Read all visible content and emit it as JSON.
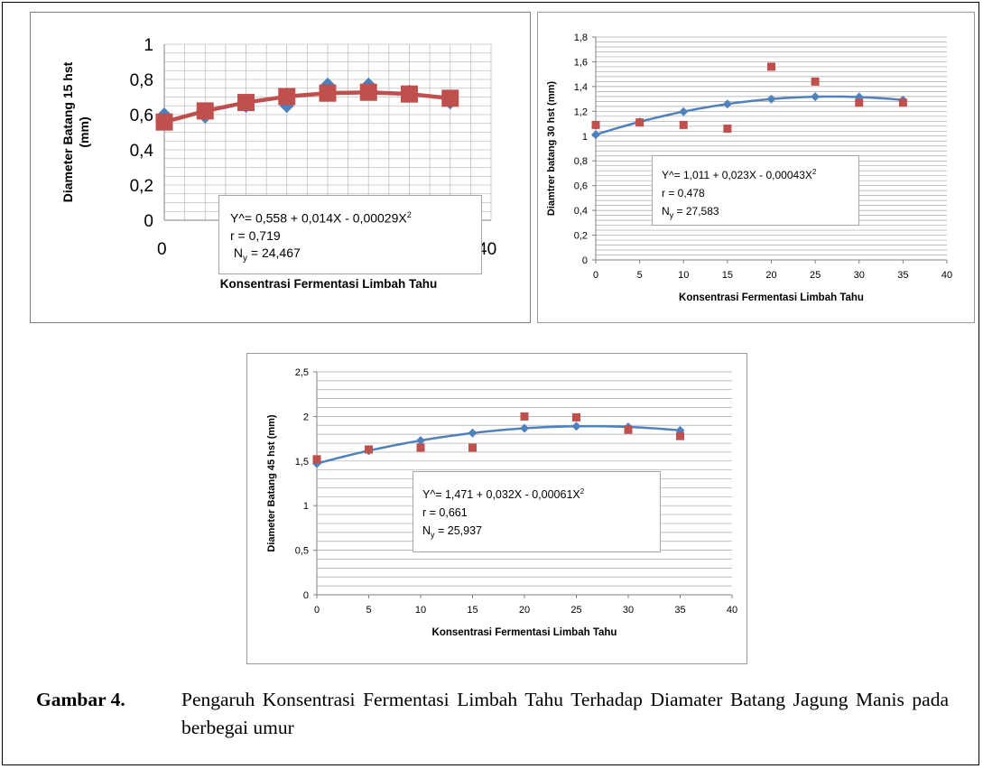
{
  "figure": {
    "caption_label": "Gambar 4.",
    "caption_text": "Pengaruh  Konsentrasi Fermentasi  Limbah Tahu Terhadap Diamater Batang Jagung Manis pada berbegai umur"
  },
  "chart_data": [
    {
      "type": "line",
      "ylabel_line1": "Diameter Batang 15 hst",
      "ylabel_line2": "(mm)",
      "xlabel": "Konsentrasi Fermentasi Limbah Tahu",
      "xlim": [
        0,
        40
      ],
      "ylim": [
        0,
        1
      ],
      "yticks": [
        0,
        0.2,
        0.4,
        0.6,
        0.8,
        1
      ],
      "ytick_labels": [
        "0",
        "0,2",
        "0,4",
        "0,6",
        "0,8",
        "1"
      ],
      "xtick_labels_visible": [
        "0",
        "40"
      ],
      "grid": true,
      "series": [
        {
          "kind": "observed",
          "marker": "diamond",
          "color": "#4f81bd",
          "x": [
            0,
            5,
            10,
            15,
            20,
            25,
            30,
            35
          ],
          "values": [
            0.6,
            0.59,
            0.65,
            0.65,
            0.77,
            0.77,
            0.73,
            0.67
          ]
        },
        {
          "kind": "fitted",
          "marker": "square",
          "color": "#c0504d",
          "x": [
            0,
            5,
            10,
            15,
            20,
            25,
            30,
            35
          ],
          "values": [
            0.558,
            0.621,
            0.669,
            0.703,
            0.722,
            0.727,
            0.717,
            0.693
          ]
        }
      ],
      "equation": {
        "line1_main": "Y^= 0,558 + 0,014X - 0,00029X",
        "line1_sup": "2",
        "line2": "r = 0,719",
        "line3_pre": "N",
        "line3_sub": "y",
        "line3_post": " = 24,467"
      }
    },
    {
      "type": "scatter",
      "ylabel": "Diamtrer batang 30 hst (mm)",
      "xlabel": "Konsentrasi Fermentasi Limbah Tahu",
      "xlim": [
        0,
        40
      ],
      "ylim": [
        0,
        1.8
      ],
      "xticks": [
        0,
        5,
        10,
        15,
        20,
        25,
        30,
        35,
        40
      ],
      "xtick_labels": [
        "0",
        "5",
        "10",
        "15",
        "20",
        "25",
        "30",
        "35",
        "40"
      ],
      "yticks": [
        0,
        0.2,
        0.4,
        0.6,
        0.8,
        1,
        1.2,
        1.4,
        1.6,
        1.8
      ],
      "ytick_labels": [
        "0",
        "0,2",
        "0,4",
        "0,6",
        "0,8",
        "1",
        "1,2",
        "1,4",
        "1,6",
        "1,8"
      ],
      "grid": true,
      "series": [
        {
          "kind": "fitted",
          "marker": "diamond",
          "color": "#4f81bd",
          "x": [
            0,
            5,
            10,
            15,
            20,
            25,
            30,
            35
          ],
          "values": [
            1.011,
            1.115,
            1.197,
            1.259,
            1.299,
            1.318,
            1.315,
            1.291
          ]
        },
        {
          "kind": "observed",
          "marker": "square",
          "color": "#c0504d",
          "x": [
            0,
            5,
            10,
            15,
            20,
            25,
            30,
            35
          ],
          "values": [
            1.09,
            1.11,
            1.09,
            1.06,
            1.56,
            1.44,
            1.27,
            1.27
          ]
        }
      ],
      "equation": {
        "line1_main": "Y^= 1,011 + 0,023X - 0,00043X",
        "line1_sup": "2",
        "line2": "r = 0,478",
        "line3_pre": "N",
        "line3_sub": "y",
        "line3_post": " =  27,583"
      }
    },
    {
      "type": "scatter",
      "ylabel": "Diameter Batang 45 hst (mm)",
      "xlabel": "Konsentrasi Fermentasi Limbah Tahu",
      "xlim": [
        0,
        40
      ],
      "ylim": [
        0,
        2.5
      ],
      "xticks": [
        0,
        5,
        10,
        15,
        20,
        25,
        30,
        35,
        40
      ],
      "xtick_labels": [
        "0",
        "5",
        "10",
        "15",
        "20",
        "25",
        "30",
        "35",
        "40"
      ],
      "yticks": [
        0,
        0.5,
        1,
        1.5,
        2,
        2.5
      ],
      "ytick_labels": [
        "0",
        "0,5",
        "1",
        "1,5",
        "2",
        "2,5"
      ],
      "grid": true,
      "series": [
        {
          "kind": "fitted",
          "marker": "diamond",
          "color": "#4f81bd",
          "x": [
            0,
            5,
            10,
            15,
            20,
            25,
            30,
            35
          ],
          "values": [
            1.471,
            1.616,
            1.73,
            1.814,
            1.867,
            1.89,
            1.882,
            1.844
          ]
        },
        {
          "kind": "observed",
          "marker": "square",
          "color": "#c0504d",
          "x": [
            0,
            5,
            10,
            15,
            20,
            25,
            30,
            35
          ],
          "values": [
            1.52,
            1.63,
            1.65,
            1.65,
            2.0,
            1.99,
            1.85,
            1.78
          ]
        }
      ],
      "equation": {
        "line1_main": "Y^= 1,471 + 0,032X - 0,00061X",
        "line1_sup": "2",
        "line2": "r = 0,661",
        "line3_pre": "N",
        "line3_sub": "y",
        "line3_post": " = 25,937"
      }
    }
  ]
}
